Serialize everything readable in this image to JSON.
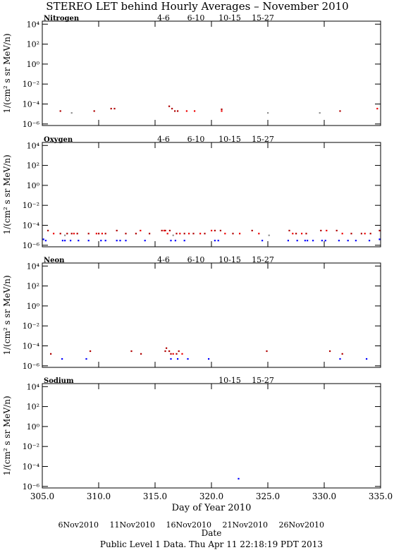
{
  "title": "STEREO LET behind Hourly Averages – November 2010",
  "footer": "Public Level 1 Data. Thu Apr 11 22:18:19 PDT 2013",
  "x_axis": {
    "xlim": [
      305,
      335
    ],
    "label": "Day of Year 2010",
    "date_label": "Date",
    "xticks": [
      {
        "value": 305,
        "label": "305.0"
      },
      {
        "value": 310,
        "label": "310.0"
      },
      {
        "value": 315,
        "label": "315.0"
      },
      {
        "value": 320,
        "label": "320.0"
      },
      {
        "value": 325,
        "label": "325.0"
      },
      {
        "value": 330,
        "label": "330.0"
      },
      {
        "value": 335,
        "label": "335.0"
      }
    ],
    "date_ticks": [
      {
        "value": 310,
        "label": "6Nov2010"
      },
      {
        "value": 315,
        "label": "11Nov2010"
      },
      {
        "value": 320,
        "label": "16Nov2010"
      },
      {
        "value": 325,
        "label": "21Nov2010"
      },
      {
        "value": 330,
        "label": "26Nov2010"
      }
    ]
  },
  "chart_data": [
    {
      "type": "scatter",
      "title": "Nitrogen",
      "ylabel": "1/(cm² s sr MeV/n)",
      "log_scale": true,
      "ylim": [
        7e-07,
        20000
      ],
      "yticks": [
        {
          "value": 10000,
          "label": "10⁴"
        },
        {
          "value": 100,
          "label": "10²"
        },
        {
          "value": 1,
          "label": "10⁰"
        },
        {
          "value": 0.01,
          "label": "10⁻²"
        },
        {
          "value": 0.0001,
          "label": "10⁻⁴"
        },
        {
          "value": 1e-06,
          "label": "10⁻⁶"
        }
      ],
      "series": [
        {
          "name": "4-6",
          "color": "#b00000",
          "x": [
            306.6,
            309.6,
            311.1,
            311.4,
            316.25,
            316.5,
            316.75,
            317.0,
            320.9,
            331.4
          ],
          "values": [
            2e-05,
            2e-05,
            3.5e-05,
            3.5e-05,
            6e-05,
            3.5e-05,
            2e-05,
            2e-05,
            3e-05,
            2e-05
          ]
        },
        {
          "name": "6-10",
          "color": "#ee0000",
          "x": [
            317.8,
            318.5,
            320.9,
            334.7
          ],
          "values": [
            2e-05,
            2e-05,
            2e-05,
            3.5e-05
          ]
        },
        {
          "name": "10-15",
          "color": "#909090",
          "x": [
            307.6,
            325.0,
            329.6
          ],
          "values": [
            1.3e-05,
            1.3e-05,
            1.3e-05
          ]
        },
        {
          "name": "15-27",
          "color": "#0000ff",
          "x": [],
          "values": []
        }
      ]
    },
    {
      "type": "scatter",
      "title": "Oxygen",
      "ylabel": "1/(cm² s sr MeV/n)",
      "log_scale": true,
      "ylim": [
        7e-07,
        20000
      ],
      "yticks": [
        {
          "value": 10000,
          "label": "10⁴"
        },
        {
          "value": 100,
          "label": "10²"
        },
        {
          "value": 1,
          "label": "10⁰"
        },
        {
          "value": 0.01,
          "label": "10⁻²"
        },
        {
          "value": 0.0001,
          "label": "10⁻⁴"
        },
        {
          "value": 1e-06,
          "label": "10⁻⁶"
        }
      ],
      "series": [
        {
          "name": "4-6",
          "color": "#b00000",
          "x": [
            305.5,
            306.6,
            307.2,
            307.6,
            308.1,
            309.1,
            310.0,
            310.6,
            311.6,
            312.4,
            313.3,
            314.5,
            315.6,
            315.9,
            316.3,
            316.9,
            317.6,
            318.4,
            319.4,
            320.3,
            320.8,
            321.9,
            323.6,
            326.9,
            327.5,
            328.4,
            329.7,
            331.1,
            332.4,
            333.3,
            334.1,
            334.9
          ],
          "values": [
            3e-05,
            1.5e-05,
            1.5e-05,
            1.5e-05,
            1.5e-05,
            1.5e-05,
            1.5e-05,
            1.5e-05,
            3e-05,
            1.5e-05,
            1.5e-05,
            1.5e-05,
            3e-05,
            3e-05,
            3e-05,
            1.5e-05,
            1.5e-05,
            1.5e-05,
            1.5e-05,
            3e-05,
            3e-05,
            1.5e-05,
            3e-05,
            3e-05,
            1.5e-05,
            1.5e-05,
            3e-05,
            3e-05,
            1.5e-05,
            1.5e-05,
            1.5e-05,
            3e-05
          ]
        },
        {
          "name": "6-10",
          "color": "#ee0000",
          "x": [
            306.0,
            307.8,
            309.8,
            310.3,
            313.7,
            315.8,
            316.1,
            317.2,
            318.0,
            319.0,
            320.0,
            321.2,
            322.5,
            324.2,
            327.2,
            328.0,
            330.2,
            331.6,
            333.6
          ],
          "values": [
            1.5e-05,
            1.5e-05,
            1.5e-05,
            1.5e-05,
            3e-05,
            3e-05,
            1.5e-05,
            1.5e-05,
            1.5e-05,
            1.5e-05,
            3e-05,
            1.5e-05,
            1.5e-05,
            1.5e-05,
            1.5e-05,
            1.5e-05,
            3e-05,
            1.5e-05,
            1.5e-05
          ]
        },
        {
          "name": "10-15",
          "color": "#909090",
          "x": [
            307.0,
            316.6,
            325.1
          ],
          "values": [
            1e-05,
            1e-05,
            1e-05
          ]
        },
        {
          "name": "15-27",
          "color": "#0000ff",
          "x": [
            305.1,
            305.3,
            306.8,
            307.0,
            307.5,
            308.2,
            309.1,
            310.2,
            310.6,
            311.6,
            311.9,
            312.4,
            314.1,
            316.4,
            316.8,
            317.6,
            320.3,
            320.6,
            324.5,
            326.8,
            327.6,
            328.3,
            328.5,
            329.0,
            329.8,
            330.1,
            331.3,
            332.1,
            332.8,
            334.0,
            334.9
          ],
          "values": [
            4e-06,
            3e-06,
            3e-06,
            3e-06,
            3e-06,
            3e-06,
            3e-06,
            3e-06,
            3e-06,
            3e-06,
            3e-06,
            3e-06,
            3e-06,
            3e-06,
            3e-06,
            3e-06,
            3e-06,
            3e-06,
            3e-06,
            3e-06,
            3e-06,
            3e-06,
            3e-06,
            3e-06,
            3e-06,
            3e-06,
            3e-06,
            3e-06,
            3e-06,
            3e-06,
            4e-06
          ]
        }
      ]
    },
    {
      "type": "scatter",
      "title": "Neon",
      "ylabel": "1/(cm² s sr MeV/n)",
      "log_scale": true,
      "ylim": [
        7e-07,
        20000
      ],
      "yticks": [
        {
          "value": 10000,
          "label": "10⁴"
        },
        {
          "value": 100,
          "label": "10²"
        },
        {
          "value": 1,
          "label": "10⁰"
        },
        {
          "value": 0.01,
          "label": "10⁻²"
        },
        {
          "value": 0.0001,
          "label": "10⁻⁴"
        },
        {
          "value": 1e-06,
          "label": "10⁻⁶"
        }
      ],
      "series": [
        {
          "name": "4-6",
          "color": "#b00000",
          "x": [
            305.75,
            309.25,
            312.9,
            313.75,
            315.9,
            316.0,
            316.25,
            316.4,
            316.9,
            317.1,
            324.9,
            330.5,
            331.6
          ],
          "values": [
            1.6e-05,
            3e-05,
            3e-05,
            1.6e-05,
            3e-05,
            6e-05,
            3e-05,
            1.6e-05,
            1.6e-05,
            3e-05,
            3e-05,
            3e-05,
            1.6e-05
          ]
        },
        {
          "name": "6-10",
          "color": "#ee0000",
          "x": [
            316.6,
            317.4
          ],
          "values": [
            1.6e-05,
            1.6e-05
          ]
        },
        {
          "name": "10-15",
          "color": "#909090",
          "x": [],
          "values": []
        },
        {
          "name": "15-27",
          "color": "#0000ff",
          "x": [
            306.75,
            308.9,
            316.4,
            317.0,
            317.9,
            319.75,
            331.4,
            333.75
          ],
          "values": [
            5e-06,
            5e-06,
            5e-06,
            5e-06,
            5e-06,
            5e-06,
            5e-06,
            5e-06
          ]
        }
      ]
    },
    {
      "type": "scatter",
      "title": "Sodium",
      "ylabel": "1/(cm² s sr MeV/n)",
      "log_scale": true,
      "ylim": [
        7e-07,
        20000
      ],
      "yticks": [
        {
          "value": 10000,
          "label": "10⁴"
        },
        {
          "value": 100,
          "label": "10²"
        },
        {
          "value": 1,
          "label": "10⁰"
        },
        {
          "value": 0.01,
          "label": "10⁻²"
        },
        {
          "value": 0.0001,
          "label": "10⁻⁴"
        },
        {
          "value": 1e-06,
          "label": "10⁻⁶"
        }
      ],
      "series": [
        {
          "name": "10-15",
          "color": "#909090",
          "x": [],
          "values": []
        },
        {
          "name": "15-27",
          "color": "#0000ff",
          "x": [
            322.4
          ],
          "values": [
            6e-06
          ]
        }
      ]
    }
  ]
}
